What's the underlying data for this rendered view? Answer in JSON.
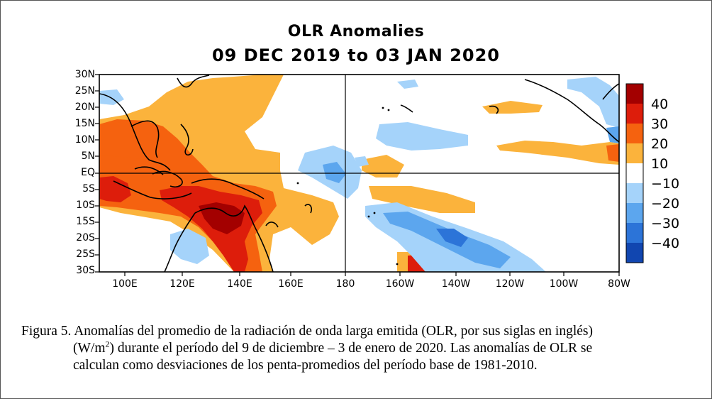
{
  "title": "OLR Anomalies",
  "subtitle": "09 DEC 2019 to 03 JAN 2020",
  "lat_labels": [
    "30N",
    "25N",
    "20N",
    "15N",
    "10N",
    "5N",
    "EQ",
    "5S",
    "10S",
    "15S",
    "20S",
    "25S",
    "30S"
  ],
  "lon_labels": [
    "100E",
    "120E",
    "140E",
    "160E",
    "180",
    "160W",
    "140W",
    "120W",
    "100W",
    "80W"
  ],
  "colorbar": {
    "labels": [
      "40",
      "30",
      "20",
      "10",
      "−10",
      "−20",
      "−30",
      "−40"
    ],
    "colors": {
      "pos40": "#a30000",
      "pos30": "#dd1d0b",
      "pos20": "#f5620f",
      "pos10": "#fbb33c",
      "neutral": "#ffffff",
      "neg10": "#a5d3fa",
      "neg20": "#5ca6ee",
      "neg30": "#2c74d8",
      "neg40": "#1146b0"
    }
  },
  "caption": {
    "line1": "Figura 5. Anomalías del promedio de la radiación de onda larga emitida (OLR, por sus siglas en inglés)",
    "line2_pre": "(W/m",
    "line2_sup": "2",
    "line2_post": ") durante el período del 9 de diciembre – 3 de enero de 2020.  Las anomalías de OLR se",
    "line3": "calculan como desviaciones de los penta-promedios del período base de 1981-2010."
  }
}
